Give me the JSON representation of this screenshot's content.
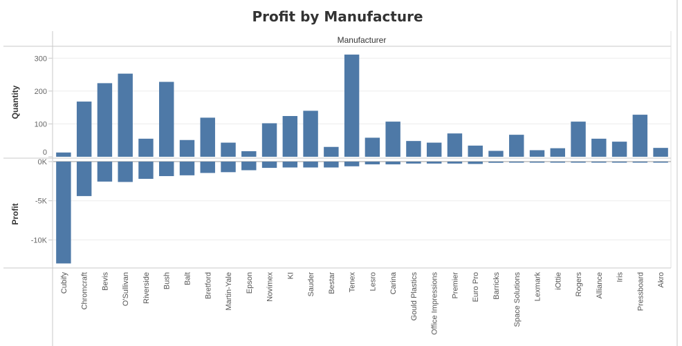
{
  "chart_data": {
    "type": "bar",
    "title": "Profit by Manufacture",
    "column_header": "Manufacturer",
    "categories": [
      "Cubify",
      "Chromcraft",
      "Bevis",
      "O'Sullivan",
      "Riverside",
      "Bush",
      "Balt",
      "Bretford",
      "Martin-Yale",
      "Epson",
      "Novimex",
      "KI",
      "Sauder",
      "Bestar",
      "Tenex",
      "Lesro",
      "Carina",
      "Gould Plastics",
      "Office Impressions",
      "Premier",
      "Euro Pro",
      "Barricks",
      "Space Solutions",
      "Lexmark",
      "iOttie",
      "Rogers",
      "Alliance",
      "Iris",
      "Pressboard",
      "Akro"
    ],
    "series": [
      {
        "name": "Quantity",
        "values": [
          13,
          168,
          224,
          253,
          55,
          228,
          51,
          119,
          43,
          17,
          102,
          124,
          140,
          30,
          311,
          58,
          107,
          48,
          43,
          71,
          34,
          18,
          67,
          20,
          26,
          107,
          55,
          46,
          128,
          27
        ],
        "ylim": [
          0,
          330
        ],
        "ticks": [
          0,
          100,
          200,
          300
        ],
        "tick_labels": [
          "0",
          "100",
          "200",
          "300"
        ]
      },
      {
        "name": "Profit",
        "values": [
          -13000,
          -4400,
          -2550,
          -2600,
          -2200,
          -1850,
          -1750,
          -1450,
          -1350,
          -1100,
          -800,
          -750,
          -750,
          -750,
          -600,
          -350,
          -350,
          -250,
          -250,
          -250,
          -300,
          -150,
          -100,
          -100,
          -100,
          -100,
          -100,
          -100,
          -100,
          -100
        ],
        "ylim": [
          -13400,
          0
        ],
        "ticks": [
          0,
          -5000,
          -10000
        ],
        "tick_labels": [
          "0K",
          "-5K",
          "-10K"
        ]
      }
    ],
    "bar_color": "#4e79a7",
    "grid": true
  }
}
